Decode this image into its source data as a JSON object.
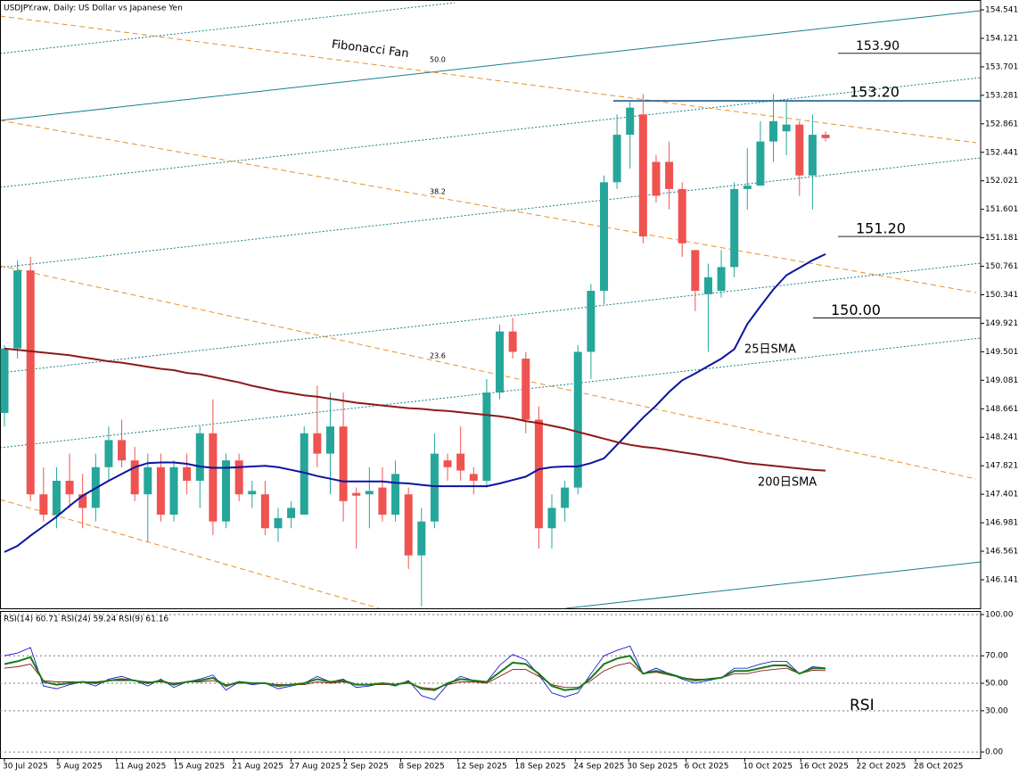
{
  "chart_data": [
    {
      "type": "candlestick",
      "title": "USDJPY.raw, Daily:  US Dollar vs Japanese Yen",
      "up_color": "#26a69a",
      "down_color": "#ef5350",
      "open": [
        148.6,
        149.55,
        150.7,
        147.4,
        147.1,
        147.6,
        147.4,
        147.2,
        147.8,
        148.2,
        147.9,
        147.4,
        147.8,
        147.1,
        147.8,
        147.6,
        148.3,
        147.0,
        147.9,
        147.4,
        147.4,
        146.9,
        147.05,
        147.1,
        148.3,
        148.0,
        148.4,
        147.42,
        147.4,
        147.5,
        147.1,
        147.4,
        146.5,
        147.0,
        147.9,
        148.0,
        147.7,
        147.6,
        148.9,
        149.8,
        149.4,
        148.5,
        146.9,
        147.2,
        147.5,
        149.5,
        150.4,
        152.0,
        152.7,
        153.0,
        152.3,
        152.3,
        151.9,
        151.0,
        150.35,
        150.4,
        150.75,
        151.9,
        151.95,
        152.6,
        152.75,
        152.85,
        152.1,
        152.7
      ],
      "high": [
        149.6,
        150.85,
        150.9,
        147.8,
        147.8,
        148.0,
        147.7,
        148.0,
        148.4,
        148.5,
        148.1,
        148.0,
        148.0,
        147.9,
        148.0,
        148.4,
        148.8,
        148.0,
        148.0,
        147.6,
        147.6,
        147.2,
        147.3,
        148.4,
        149.0,
        148.9,
        148.9,
        147.5,
        147.8,
        147.8,
        147.9,
        147.5,
        147.2,
        148.3,
        148.0,
        148.4,
        147.8,
        149.1,
        149.9,
        150.0,
        149.5,
        148.7,
        147.4,
        147.6,
        149.6,
        150.5,
        152.1,
        153.0,
        153.2,
        153.3,
        152.4,
        152.6,
        152.0,
        151.0,
        150.8,
        151.0,
        152.0,
        152.5,
        152.9,
        153.3,
        153.2,
        152.9,
        153.0,
        152.75
      ],
      "low": [
        148.4,
        149.4,
        147.3,
        147.0,
        146.9,
        147.2,
        146.9,
        147.0,
        147.6,
        147.8,
        147.3,
        146.7,
        147.0,
        147.0,
        147.4,
        147.2,
        146.8,
        146.9,
        147.3,
        147.2,
        146.8,
        146.7,
        146.9,
        147.1,
        147.8,
        147.4,
        147.0,
        146.6,
        146.9,
        147.0,
        147.0,
        146.3,
        145.75,
        146.9,
        147.6,
        147.6,
        147.4,
        147.5,
        148.8,
        149.4,
        148.3,
        146.6,
        146.6,
        147.0,
        147.4,
        149.1,
        150.2,
        151.9,
        152.2,
        151.1,
        151.7,
        151.6,
        150.9,
        150.1,
        149.5,
        150.3,
        150.6,
        151.6,
        151.95,
        152.3,
        152.4,
        151.8,
        151.6,
        152.6
      ],
      "close": [
        149.55,
        150.7,
        147.4,
        147.1,
        147.6,
        147.4,
        147.2,
        147.8,
        148.2,
        147.9,
        147.4,
        147.8,
        147.1,
        147.8,
        147.6,
        148.3,
        147.0,
        147.9,
        147.4,
        147.45,
        146.9,
        147.05,
        147.2,
        148.3,
        148.0,
        148.4,
        147.3,
        147.38,
        147.45,
        147.1,
        147.7,
        146.5,
        147.0,
        148.0,
        147.8,
        147.75,
        147.6,
        148.9,
        149.8,
        149.5,
        148.5,
        146.9,
        147.2,
        147.5,
        149.5,
        150.4,
        152.0,
        152.7,
        153.1,
        151.2,
        151.8,
        151.9,
        151.1,
        150.4,
        150.6,
        150.75,
        151.9,
        151.95,
        152.6,
        152.9,
        152.85,
        152.1,
        152.7,
        152.65
      ],
      "series": [
        {
          "name": "25日SMA",
          "color": "#0a14a0",
          "values": [
            146.55,
            146.64,
            146.79,
            146.93,
            147.07,
            147.23,
            147.38,
            147.49,
            147.6,
            147.7,
            147.8,
            147.86,
            147.87,
            147.87,
            147.85,
            147.81,
            147.79,
            147.79,
            147.8,
            147.81,
            147.82,
            147.8,
            147.76,
            147.72,
            147.67,
            147.63,
            147.59,
            147.59,
            147.59,
            147.59,
            147.57,
            147.56,
            147.54,
            147.52,
            147.52,
            147.52,
            147.52,
            147.52,
            147.56,
            147.61,
            147.66,
            147.77,
            147.8,
            147.81,
            147.81,
            147.86,
            147.93,
            148.13,
            148.33,
            148.53,
            148.71,
            148.91,
            149.08,
            149.18,
            149.29,
            149.4,
            149.54,
            149.91,
            150.17,
            150.42,
            150.63,
            150.74,
            150.85,
            150.94
          ]
        },
        {
          "name": "200日SMA",
          "color": "#8b1a1a",
          "values": [
            149.55,
            149.53,
            149.51,
            149.49,
            149.47,
            149.45,
            149.42,
            149.39,
            149.36,
            149.34,
            149.31,
            149.28,
            149.25,
            149.23,
            149.19,
            149.17,
            149.13,
            149.09,
            149.05,
            149.0,
            148.96,
            148.92,
            148.89,
            148.86,
            148.84,
            148.81,
            148.78,
            148.75,
            148.73,
            148.71,
            148.69,
            148.67,
            148.66,
            148.64,
            148.63,
            148.61,
            148.59,
            148.57,
            148.55,
            148.52,
            148.48,
            148.45,
            148.41,
            148.37,
            148.32,
            148.27,
            148.22,
            148.17,
            148.13,
            148.1,
            148.08,
            148.05,
            148.02,
            147.99,
            147.96,
            147.93,
            147.89,
            147.86,
            147.84,
            147.82,
            147.8,
            147.78,
            147.76,
            147.75
          ]
        }
      ],
      "levels": [
        {
          "value": 153.9,
          "label": "153.90"
        },
        {
          "value": 153.2,
          "label": "153.20"
        },
        {
          "value": 151.2,
          "label": "151.20"
        },
        {
          "value": 150,
          "label": "150.00"
        }
      ],
      "annotations": [
        "Fibonacci Fan",
        "50.0",
        "38.2",
        "23.6"
      ],
      "ylim": [
        145.72,
        154.686
      ],
      "yticks": [
        154.541,
        154.121,
        153.701,
        153.281,
        152.861,
        152.441,
        152.021,
        151.601,
        151.181,
        150.761,
        150.341,
        149.921,
        149.501,
        149.081,
        148.661,
        148.241,
        147.821,
        147.401,
        146.981,
        146.561,
        146.141
      ],
      "xlim": [
        -0.34,
        74.9
      ],
      "xticks": [
        {
          "value": 0,
          "label": "30 Jul 2025"
        },
        {
          "value": 4.1,
          "label": "5 Aug 2025"
        },
        {
          "value": 8.6,
          "label": "11 Aug 2025"
        },
        {
          "value": 13.1,
          "label": "15 Aug 2025"
        },
        {
          "value": 17.6,
          "label": "21 Aug 2025"
        },
        {
          "value": 22,
          "label": "27 Aug 2025"
        },
        {
          "value": 26.1,
          "label": "2 Sep 2025"
        },
        {
          "value": 30.4,
          "label": "8 Sep 2025"
        },
        {
          "value": 34.8,
          "label": "12 Sep 2025"
        },
        {
          "value": 39.3,
          "label": "18 Sep 2025"
        },
        {
          "value": 43.8,
          "label": "24 Sep 2025"
        },
        {
          "value": 47.9,
          "label": "30 Sep 2025"
        },
        {
          "value": 52.3,
          "label": "6 Oct 2025"
        },
        {
          "value": 56.8,
          "label": "10 Oct 2025"
        },
        {
          "value": 61.1,
          "label": "16 Oct 2025"
        },
        {
          "value": 65.5,
          "label": "22 Oct 2025"
        },
        {
          "value": 69.9,
          "label": "28 Oct 2025"
        }
      ]
    },
    {
      "type": "line",
      "title": "RSI(14) 60.71 RSI(24) 59.24 RSI(9) 61.16",
      "annotations": [
        "RSI"
      ],
      "series": [
        {
          "color": "#0000cd",
          "values": [
            70,
            72,
            76,
            48,
            46,
            49,
            51,
            48,
            53,
            55,
            52,
            48,
            53,
            47,
            51,
            53,
            56,
            45,
            51,
            49,
            50,
            46,
            48,
            50,
            55,
            51,
            53,
            47,
            48,
            50,
            48,
            52,
            41,
            38,
            49,
            55,
            52,
            51,
            63,
            71,
            67,
            56,
            43,
            40,
            43,
            57,
            70,
            74,
            77,
            57,
            61,
            57,
            53,
            50,
            52,
            54,
            61,
            61,
            64,
            66,
            66,
            57,
            62,
            61.16
          ]
        },
        {
          "color": "#8b1a1a",
          "values": [
            61,
            62,
            64,
            52,
            51,
            51,
            51,
            51,
            52,
            52,
            52,
            51,
            51,
            50,
            51,
            51,
            52,
            49,
            50,
            50,
            50,
            49,
            49,
            49,
            51,
            50,
            51,
            49,
            49,
            49,
            49,
            50,
            47,
            46,
            49,
            51,
            51,
            50,
            55,
            60,
            60,
            55,
            49,
            47,
            47,
            52,
            59,
            63,
            65,
            57,
            58,
            56,
            54,
            53,
            53,
            54,
            57,
            57,
            59,
            60,
            61,
            57,
            59.5,
            59.24
          ]
        },
        {
          "color": "#1a7a1a",
          "values": [
            64,
            66,
            69,
            51,
            49,
            50,
            51,
            50,
            52,
            53,
            52,
            50,
            52,
            49,
            51,
            52,
            54,
            48,
            51,
            50,
            50,
            48,
            49,
            50,
            53,
            51,
            52,
            49,
            49,
            50,
            49,
            51,
            46,
            45,
            50,
            53,
            52,
            51,
            58,
            65,
            64,
            57,
            48,
            45,
            46,
            54,
            64,
            68,
            70,
            57,
            59,
            57,
            54,
            52,
            53,
            54,
            59,
            59,
            61,
            63,
            63,
            57,
            61,
            60.71
          ]
        }
      ],
      "ylim": [
        -4.5,
        102.6
      ],
      "yticks": [
        {
          "value": 100,
          "label": "100.00"
        },
        {
          "value": 70,
          "label": "70.00"
        },
        {
          "value": 50,
          "label": "50.00"
        },
        {
          "value": 30,
          "label": "30.00"
        },
        {
          "value": 0,
          "label": "0.00"
        }
      ],
      "grid": true
    }
  ]
}
